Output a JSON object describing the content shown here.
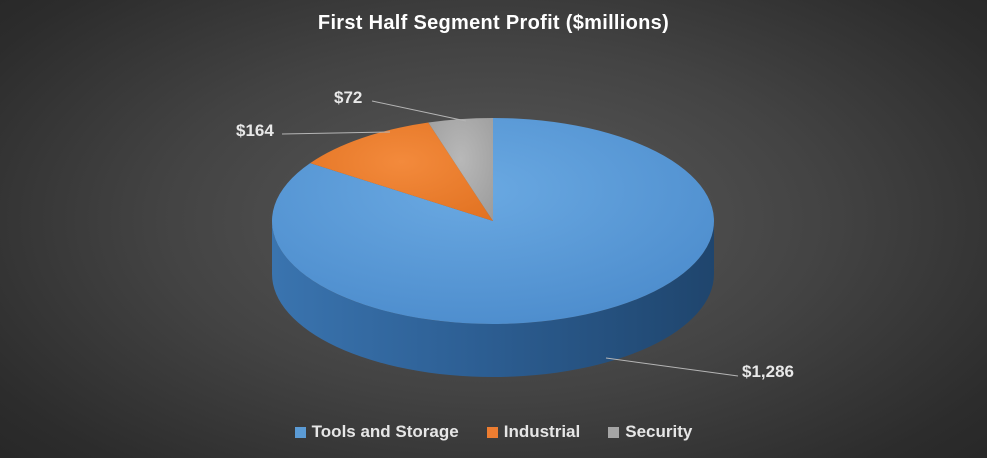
{
  "chart_data": {
    "type": "pie",
    "title": "First Half Segment Profit ($millions)",
    "categories": [
      "Tools and Storage",
      "Industrial",
      "Security"
    ],
    "values": [
      1286,
      164,
      72
    ],
    "labels": [
      "$1,286",
      "$164",
      "$72"
    ],
    "colors": [
      "#5b9bd5",
      "#ed7d31",
      "#a5a5a5"
    ],
    "style": "3d",
    "legend": "bottom"
  }
}
